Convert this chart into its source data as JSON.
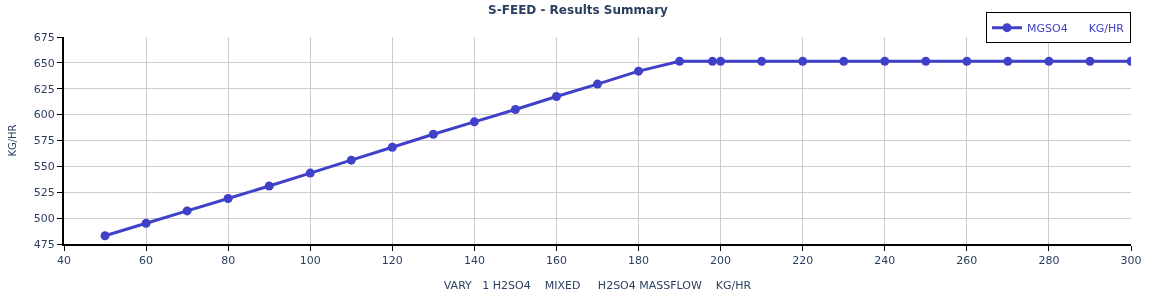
{
  "chart_data": {
    "type": "line",
    "title": "S-FEED - Results Summary",
    "xlabel": "VARY   1 H2SO4    MIXED     H2SO4 MASSFLOW    KG/HR",
    "ylabel": "KG/HR",
    "x": [
      50,
      60,
      70,
      80,
      90,
      100,
      110,
      120,
      130,
      140,
      150,
      160,
      170,
      180,
      190,
      198,
      200,
      210,
      220,
      230,
      240,
      250,
      260,
      270,
      280,
      290,
      300
    ],
    "series": [
      {
        "name": "MGSO4      KG/HR",
        "color": "#4040c8",
        "values": [
          483,
          495,
          507,
          519,
          531,
          543.5,
          556,
          568.5,
          581,
          593,
          605,
          617.5,
          629.5,
          642,
          651.5,
          651.5,
          651.5,
          651.5,
          651.5,
          651.5,
          651.5,
          651.5,
          651.5,
          651.5,
          651.5,
          651.5,
          651.5
        ]
      }
    ],
    "xlim": [
      40,
      300
    ],
    "xticks": [
      40,
      60,
      80,
      100,
      120,
      140,
      160,
      180,
      200,
      220,
      240,
      260,
      280,
      300
    ],
    "ylim": [
      475,
      675
    ],
    "yticks": [
      475,
      500,
      525,
      550,
      575,
      600,
      625,
      650,
      675
    ],
    "grid": true,
    "legend": "top right",
    "marker": "circle",
    "line_style": "solid"
  }
}
